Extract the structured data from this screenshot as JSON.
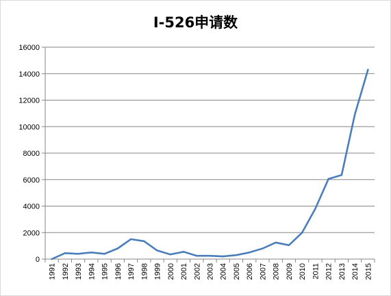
{
  "chart_data": {
    "type": "line",
    "title": "I-526申请数",
    "xlabel": "",
    "ylabel": "",
    "ylim": [
      0,
      16000
    ],
    "yticks": [
      0,
      2000,
      4000,
      6000,
      8000,
      10000,
      12000,
      14000,
      16000
    ],
    "grid": true,
    "legend": "none",
    "line_color": "#4a7ebb",
    "x": [
      "1991",
      "1992",
      "1993",
      "1994",
      "1995",
      "1996",
      "1997",
      "1998",
      "1999",
      "2000",
      "2001",
      "2002",
      "2003",
      "2004",
      "2005",
      "2006",
      "2007",
      "2008",
      "2009",
      "2010",
      "2011",
      "2012",
      "2013",
      "2014",
      "2015"
    ],
    "series": [
      {
        "values": [
          0,
          450,
          400,
          500,
          400,
          800,
          1500,
          1350,
          650,
          350,
          550,
          250,
          250,
          200,
          300,
          500,
          800,
          1250,
          1050,
          2000,
          3800,
          6050,
          6350,
          10900,
          14300
        ]
      }
    ]
  }
}
